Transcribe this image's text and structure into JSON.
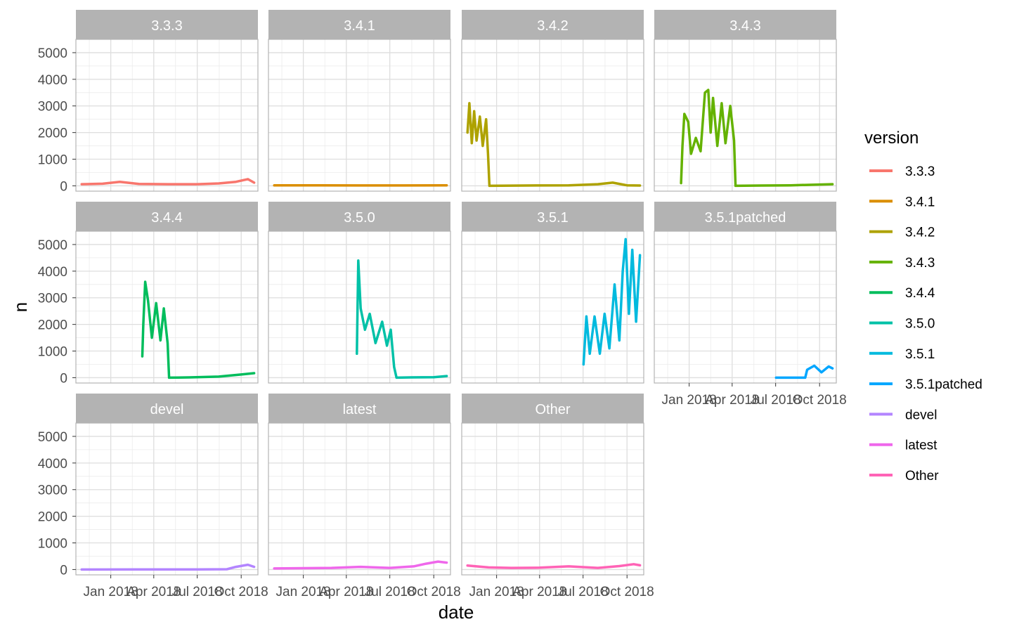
{
  "chart_data": {
    "type": "line",
    "facet_type": "facet_wrap",
    "xlabel": "date",
    "ylabel": "n",
    "x_scale": "date",
    "xlim": [
      "2017-10-20",
      "2018-11-05"
    ],
    "ylim": [
      -200,
      5500
    ],
    "y_ticks": [
      0,
      1000,
      2000,
      3000,
      4000,
      5000
    ],
    "x_ticks": [
      {
        "date": "2018-01-01",
        "label": "Jan 2018"
      },
      {
        "date": "2018-04-01",
        "label": "Apr 2018"
      },
      {
        "date": "2018-07-01",
        "label": "Jul 2018"
      },
      {
        "date": "2018-10-01",
        "label": "Oct 2018"
      }
    ],
    "grid": true,
    "legend": {
      "title": "version",
      "position": "right"
    },
    "series": [
      {
        "name": "3.3.3",
        "color": "#F8766D",
        "points": [
          [
            "2017-11-01",
            60
          ],
          [
            "2017-12-15",
            80
          ],
          [
            "2018-01-20",
            150
          ],
          [
            "2018-03-01",
            70
          ],
          [
            "2018-05-01",
            60
          ],
          [
            "2018-07-01",
            60
          ],
          [
            "2018-08-15",
            90
          ],
          [
            "2018-09-20",
            150
          ],
          [
            "2018-10-15",
            250
          ],
          [
            "2018-10-28",
            120
          ]
        ]
      },
      {
        "name": "3.4.1",
        "color": "#DB8E00",
        "points": [
          [
            "2017-11-01",
            20
          ],
          [
            "2018-02-01",
            20
          ],
          [
            "2018-05-01",
            15
          ],
          [
            "2018-08-01",
            15
          ],
          [
            "2018-10-28",
            20
          ]
        ]
      },
      {
        "name": "3.4.2",
        "color": "#AEA200",
        "points": [
          [
            "2017-11-01",
            2000
          ],
          [
            "2017-11-05",
            3100
          ],
          [
            "2017-11-10",
            1600
          ],
          [
            "2017-11-15",
            2800
          ],
          [
            "2017-11-20",
            1700
          ],
          [
            "2017-11-27",
            2600
          ],
          [
            "2017-12-03",
            1500
          ],
          [
            "2017-12-10",
            2500
          ],
          [
            "2017-12-14",
            1200
          ],
          [
            "2017-12-17",
            0
          ],
          [
            "2018-03-01",
            10
          ],
          [
            "2018-06-01",
            20
          ],
          [
            "2018-08-01",
            60
          ],
          [
            "2018-09-01",
            120
          ],
          [
            "2018-10-01",
            20
          ],
          [
            "2018-10-28",
            10
          ]
        ]
      },
      {
        "name": "3.4.3",
        "color": "#64B200",
        "points": [
          [
            "2017-12-15",
            100
          ],
          [
            "2017-12-18",
            1500
          ],
          [
            "2017-12-22",
            2700
          ],
          [
            "2017-12-30",
            2400
          ],
          [
            "2018-01-05",
            1200
          ],
          [
            "2018-01-15",
            1800
          ],
          [
            "2018-01-25",
            1300
          ],
          [
            "2018-02-03",
            3500
          ],
          [
            "2018-02-10",
            3600
          ],
          [
            "2018-02-15",
            2000
          ],
          [
            "2018-02-20",
            3300
          ],
          [
            "2018-03-01",
            1500
          ],
          [
            "2018-03-10",
            3100
          ],
          [
            "2018-03-18",
            1600
          ],
          [
            "2018-03-28",
            3000
          ],
          [
            "2018-04-05",
            1700
          ],
          [
            "2018-04-08",
            0
          ],
          [
            "2018-06-01",
            10
          ],
          [
            "2018-08-01",
            20
          ],
          [
            "2018-10-28",
            60
          ]
        ]
      },
      {
        "name": "3.4.4",
        "color": "#00BD5C",
        "points": [
          [
            "2018-03-08",
            800
          ],
          [
            "2018-03-10",
            2000
          ],
          [
            "2018-03-14",
            3600
          ],
          [
            "2018-03-20",
            2900
          ],
          [
            "2018-03-28",
            1500
          ],
          [
            "2018-04-06",
            2800
          ],
          [
            "2018-04-15",
            1400
          ],
          [
            "2018-04-22",
            2600
          ],
          [
            "2018-04-30",
            1300
          ],
          [
            "2018-05-03",
            0
          ],
          [
            "2018-06-15",
            10
          ],
          [
            "2018-08-15",
            40
          ],
          [
            "2018-10-01",
            120
          ],
          [
            "2018-10-28",
            170
          ]
        ]
      },
      {
        "name": "3.5.0",
        "color": "#00C1A7",
        "points": [
          [
            "2018-04-23",
            900
          ],
          [
            "2018-04-24",
            2000
          ],
          [
            "2018-04-26",
            4400
          ],
          [
            "2018-05-01",
            2600
          ],
          [
            "2018-05-10",
            1800
          ],
          [
            "2018-05-20",
            2400
          ],
          [
            "2018-06-01",
            1300
          ],
          [
            "2018-06-15",
            2100
          ],
          [
            "2018-06-25",
            1200
          ],
          [
            "2018-07-03",
            1800
          ],
          [
            "2018-07-10",
            400
          ],
          [
            "2018-07-15",
            0
          ],
          [
            "2018-08-15",
            10
          ],
          [
            "2018-10-01",
            20
          ],
          [
            "2018-10-28",
            60
          ]
        ]
      },
      {
        "name": "3.5.1",
        "color": "#00BADE",
        "points": [
          [
            "2018-07-02",
            500
          ],
          [
            "2018-07-08",
            2300
          ],
          [
            "2018-07-15",
            900
          ],
          [
            "2018-07-25",
            2300
          ],
          [
            "2018-08-05",
            900
          ],
          [
            "2018-08-15",
            2400
          ],
          [
            "2018-08-25",
            1100
          ],
          [
            "2018-09-05",
            3500
          ],
          [
            "2018-09-15",
            1400
          ],
          [
            "2018-09-22",
            4000
          ],
          [
            "2018-09-28",
            5200
          ],
          [
            "2018-10-05",
            2400
          ],
          [
            "2018-10-12",
            4800
          ],
          [
            "2018-10-20",
            2100
          ],
          [
            "2018-10-28",
            4600
          ]
        ]
      },
      {
        "name": "3.5.1patched",
        "color": "#00A6FF",
        "points": [
          [
            "2018-07-02",
            0
          ],
          [
            "2018-09-01",
            0
          ],
          [
            "2018-09-05",
            300
          ],
          [
            "2018-09-20",
            450
          ],
          [
            "2018-10-05",
            200
          ],
          [
            "2018-10-20",
            420
          ],
          [
            "2018-10-28",
            350
          ]
        ]
      },
      {
        "name": "devel",
        "color": "#B385FF",
        "points": [
          [
            "2017-11-01",
            0
          ],
          [
            "2018-03-01",
            5
          ],
          [
            "2018-07-01",
            5
          ],
          [
            "2018-09-01",
            10
          ],
          [
            "2018-09-20",
            100
          ],
          [
            "2018-10-15",
            180
          ],
          [
            "2018-10-28",
            100
          ]
        ]
      },
      {
        "name": "latest",
        "color": "#EF67EB",
        "points": [
          [
            "2017-11-01",
            40
          ],
          [
            "2018-01-01",
            50
          ],
          [
            "2018-03-01",
            60
          ],
          [
            "2018-05-01",
            100
          ],
          [
            "2018-07-01",
            60
          ],
          [
            "2018-08-20",
            120
          ],
          [
            "2018-09-15",
            220
          ],
          [
            "2018-10-10",
            300
          ],
          [
            "2018-10-28",
            260
          ]
        ]
      },
      {
        "name": "Other",
        "color": "#FF63B6",
        "points": [
          [
            "2017-11-01",
            150
          ],
          [
            "2017-12-15",
            80
          ],
          [
            "2018-02-01",
            60
          ],
          [
            "2018-04-01",
            70
          ],
          [
            "2018-06-01",
            120
          ],
          [
            "2018-08-01",
            60
          ],
          [
            "2018-09-15",
            130
          ],
          [
            "2018-10-15",
            200
          ],
          [
            "2018-10-28",
            160
          ]
        ]
      }
    ]
  }
}
